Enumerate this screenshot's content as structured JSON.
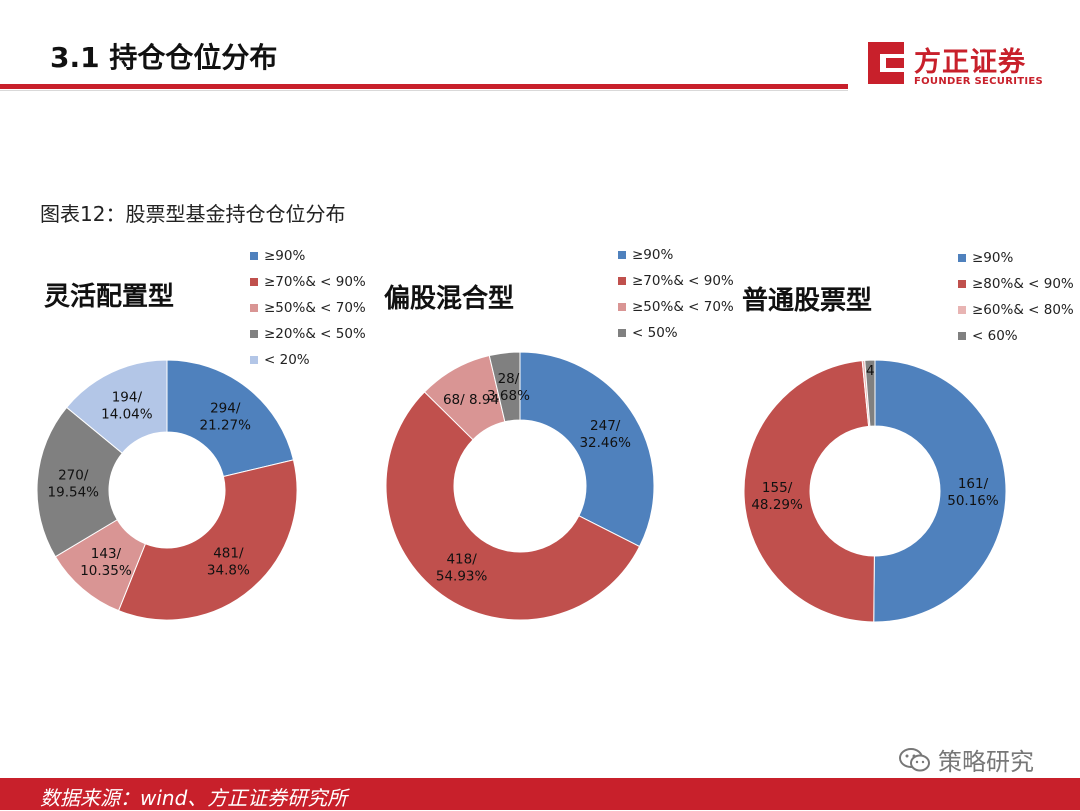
{
  "header": {
    "title": "3.1 持仓仓位分布"
  },
  "logo": {
    "cn": "方正证券",
    "en": "FOUNDER SECURITIES"
  },
  "figure_title": "图表12：股票型基金持仓仓位分布",
  "footer": {
    "source": "数据来源：wind、方正证券研究所"
  },
  "watermark": {
    "text": "策略研究"
  },
  "colors": {
    "brand_red": "#c8202b",
    "blue": "#4f81bd",
    "red": "#c0504d",
    "pink": "#d99594",
    "gray": "#808080",
    "lightblue": "#b3c6e7"
  },
  "chart_data": [
    {
      "type": "pie",
      "variant": "donut",
      "title": "灵活配置型",
      "categories": [
        "≥90%",
        "≥70%& < 90%",
        "≥50%& < 70%",
        "≥20%& < 50%",
        " < 20%"
      ],
      "values": [
        294,
        481,
        143,
        270,
        194
      ],
      "percents": [
        "21.27%",
        "34.8%",
        "10.35%",
        "19.54%",
        "14.04%"
      ],
      "labels": [
        [
          "294/",
          "21.27%"
        ],
        [
          "481/",
          "34.8%"
        ],
        [
          "143/",
          "10.35%"
        ],
        [
          "270/",
          "19.54%"
        ],
        [
          "194/",
          "14.04%"
        ]
      ],
      "colors": [
        "#4f81bd",
        "#c0504d",
        "#d99594",
        "#808080",
        "#b3c6e7"
      ],
      "legend_position": "top-right"
    },
    {
      "type": "pie",
      "variant": "donut",
      "title": "偏股混合型",
      "categories": [
        "≥90%",
        "≥70%& < 90%",
        "≥50%& < 70%",
        " < 50%"
      ],
      "values": [
        247,
        418,
        68,
        28
      ],
      "percents": [
        "32.46%",
        "54.93%",
        "8.94%",
        "3.68%"
      ],
      "labels": [
        [
          "247/",
          "32.46%"
        ],
        [
          "418/",
          "54.93%"
        ],
        [
          "68/ 8.94"
        ],
        [
          "28/",
          "3.68%"
        ]
      ],
      "colors": [
        "#4f81bd",
        "#c0504d",
        "#d99594",
        "#808080"
      ],
      "legend_position": "top-right"
    },
    {
      "type": "pie",
      "variant": "donut",
      "title": "普通股票型",
      "categories": [
        "≥90%",
        "≥80%& < 90%",
        "≥60%& < 80%",
        " < 60%"
      ],
      "values": [
        161,
        155,
        1,
        4
      ],
      "percents": [
        "50.16%",
        "48.29%",
        "",
        ""
      ],
      "labels": [
        [
          "161/",
          "50.16%"
        ],
        [
          "155/",
          "48.29%"
        ],
        [],
        [
          "4"
        ]
      ],
      "colors": [
        "#4f81bd",
        "#c0504d",
        "#e8b4b3",
        "#808080"
      ],
      "legend_position": "top-right"
    }
  ]
}
